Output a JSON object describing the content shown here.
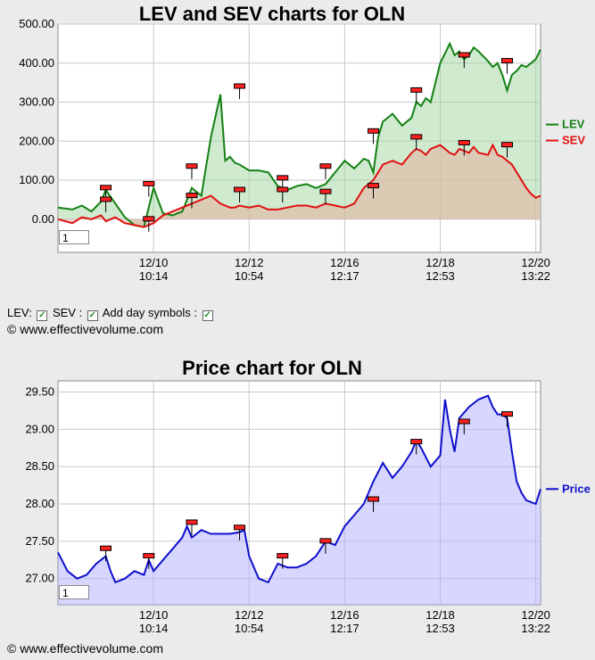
{
  "controls": {
    "lev_label": "LEV:",
    "sev_label": "SEV :",
    "day_symbols_label": "Add day symbols :"
  },
  "copyright": "© www.effectivevolume.com",
  "zoom_value": "1",
  "chart_data": [
    {
      "type": "area",
      "title": "LEV and SEV charts for OLN",
      "ylim": [
        -85,
        500
      ],
      "yticks": [
        "500.00",
        "400.00",
        "300.00",
        "200.00",
        "100.00",
        "0.00"
      ],
      "ytick_values": [
        500,
        400,
        300,
        200,
        100,
        0
      ],
      "xticks": [
        {
          "date": "12/10",
          "time": "10:14"
        },
        {
          "date": "12/12",
          "time": "10:54"
        },
        {
          "date": "12/16",
          "time": "12:17"
        },
        {
          "date": "12/18",
          "time": "12:53"
        },
        {
          "date": "12/20",
          "time": "13:22"
        }
      ],
      "xtick_positions": [
        20,
        40,
        60,
        80,
        100
      ],
      "x": [
        0,
        3,
        5,
        7,
        9,
        10,
        12,
        14,
        16,
        18,
        20,
        22,
        24,
        26,
        28,
        30,
        32,
        34,
        35,
        36,
        37,
        38,
        40,
        42,
        44,
        46,
        48,
        50,
        52,
        54,
        56,
        58,
        60,
        62,
        64,
        65,
        66,
        67,
        68,
        70,
        72,
        74,
        75,
        76,
        77,
        78,
        80,
        82,
        83,
        84,
        85,
        86,
        87,
        88,
        90,
        91,
        92,
        93,
        94,
        95,
        96,
        97,
        98,
        99,
        100,
        101
      ],
      "series": [
        {
          "name": "LEV",
          "color": "#138013",
          "values": [
            30,
            25,
            35,
            20,
            45,
            75,
            40,
            5,
            -15,
            -20,
            80,
            15,
            10,
            20,
            80,
            60,
            210,
            320,
            150,
            160,
            145,
            140,
            125,
            125,
            120,
            85,
            75,
            85,
            90,
            80,
            90,
            120,
            150,
            130,
            155,
            150,
            120,
            210,
            250,
            270,
            240,
            260,
            300,
            290,
            310,
            300,
            400,
            450,
            420,
            430,
            410,
            420,
            440,
            430,
            405,
            390,
            400,
            370,
            330,
            370,
            380,
            395,
            390,
            400,
            410,
            435
          ]
        },
        {
          "name": "SEV",
          "color": "#e01010",
          "values": [
            0,
            -10,
            5,
            0,
            10,
            -5,
            5,
            -10,
            -15,
            -20,
            -10,
            10,
            20,
            30,
            40,
            50,
            60,
            40,
            35,
            30,
            30,
            35,
            30,
            35,
            25,
            25,
            30,
            35,
            35,
            30,
            40,
            35,
            30,
            40,
            80,
            90,
            100,
            120,
            140,
            150,
            140,
            170,
            180,
            175,
            165,
            180,
            190,
            170,
            165,
            180,
            175,
            170,
            185,
            170,
            165,
            190,
            165,
            160,
            150,
            140,
            120,
            100,
            80,
            65,
            55,
            60
          ]
        }
      ],
      "day_markers": [
        {
          "x": 10,
          "lev": 80,
          "sev": 50
        },
        {
          "x": 19,
          "lev": 90,
          "sev": 0
        },
        {
          "x": 28,
          "lev": 135,
          "sev": 60
        },
        {
          "x": 38,
          "lev": 340,
          "sev": 75
        },
        {
          "x": 47,
          "lev": 105,
          "sev": 75
        },
        {
          "x": 56,
          "lev": 135,
          "sev": 70
        },
        {
          "x": 66,
          "lev": 225,
          "sev": 85
        },
        {
          "x": 75,
          "lev": 330,
          "sev": 210
        },
        {
          "x": 85,
          "lev": 420,
          "sev": 195
        },
        {
          "x": 94,
          "lev": 405,
          "sev": 190
        }
      ]
    },
    {
      "type": "area",
      "title": "Price chart for OLN",
      "ylim": [
        26.65,
        29.65
      ],
      "yticks": [
        "29.50",
        "29.00",
        "28.50",
        "28.00",
        "27.50",
        "27.00"
      ],
      "ytick_values": [
        29.5,
        29.0,
        28.5,
        28.0,
        27.5,
        27.0
      ],
      "xticks": [
        {
          "date": "12/10",
          "time": "10:14"
        },
        {
          "date": "12/12",
          "time": "10:54"
        },
        {
          "date": "12/16",
          "time": "12:17"
        },
        {
          "date": "12/18",
          "time": "12:53"
        },
        {
          "date": "12/20",
          "time": "13:22"
        }
      ],
      "xtick_positions": [
        20,
        40,
        60,
        80,
        100
      ],
      "x": [
        0,
        2,
        4,
        6,
        8,
        10,
        11,
        12,
        14,
        16,
        18,
        19,
        20,
        22,
        24,
        26,
        27,
        28,
        30,
        32,
        34,
        36,
        38,
        39,
        40,
        42,
        44,
        46,
        48,
        50,
        52,
        54,
        56,
        58,
        60,
        62,
        64,
        66,
        68,
        70,
        72,
        74,
        75,
        76,
        78,
        80,
        81,
        82,
        83,
        84,
        86,
        88,
        90,
        91,
        92,
        93,
        94,
        95,
        96,
        97,
        98,
        100,
        101
      ],
      "series": [
        {
          "name": "Price",
          "color": "#0f0fcc",
          "values": [
            27.35,
            27.1,
            27.0,
            27.05,
            27.2,
            27.3,
            27.1,
            26.95,
            27.0,
            27.1,
            27.05,
            27.25,
            27.1,
            27.25,
            27.4,
            27.55,
            27.7,
            27.55,
            27.65,
            27.6,
            27.6,
            27.6,
            27.62,
            27.65,
            27.3,
            27.0,
            26.95,
            27.2,
            27.15,
            27.15,
            27.2,
            27.3,
            27.5,
            27.45,
            27.7,
            27.85,
            28.0,
            28.3,
            28.55,
            28.35,
            28.5,
            28.7,
            28.85,
            28.75,
            28.5,
            28.65,
            29.4,
            29.0,
            28.7,
            29.15,
            29.3,
            29.4,
            29.45,
            29.3,
            29.2,
            29.2,
            29.15,
            28.7,
            28.3,
            28.15,
            28.05,
            28.0,
            28.2
          ]
        }
      ],
      "day_markers": [
        {
          "x": 10,
          "price": 27.4
        },
        {
          "x": 19,
          "price": 27.3
        },
        {
          "x": 28,
          "price": 27.75
        },
        {
          "x": 38,
          "price": 27.68
        },
        {
          "x": 47,
          "price": 27.3
        },
        {
          "x": 56,
          "price": 27.5
        },
        {
          "x": 66,
          "price": 28.06
        },
        {
          "x": 75,
          "price": 28.83
        },
        {
          "x": 85,
          "price": 29.1
        },
        {
          "x": 94,
          "price": 29.2
        }
      ]
    }
  ]
}
